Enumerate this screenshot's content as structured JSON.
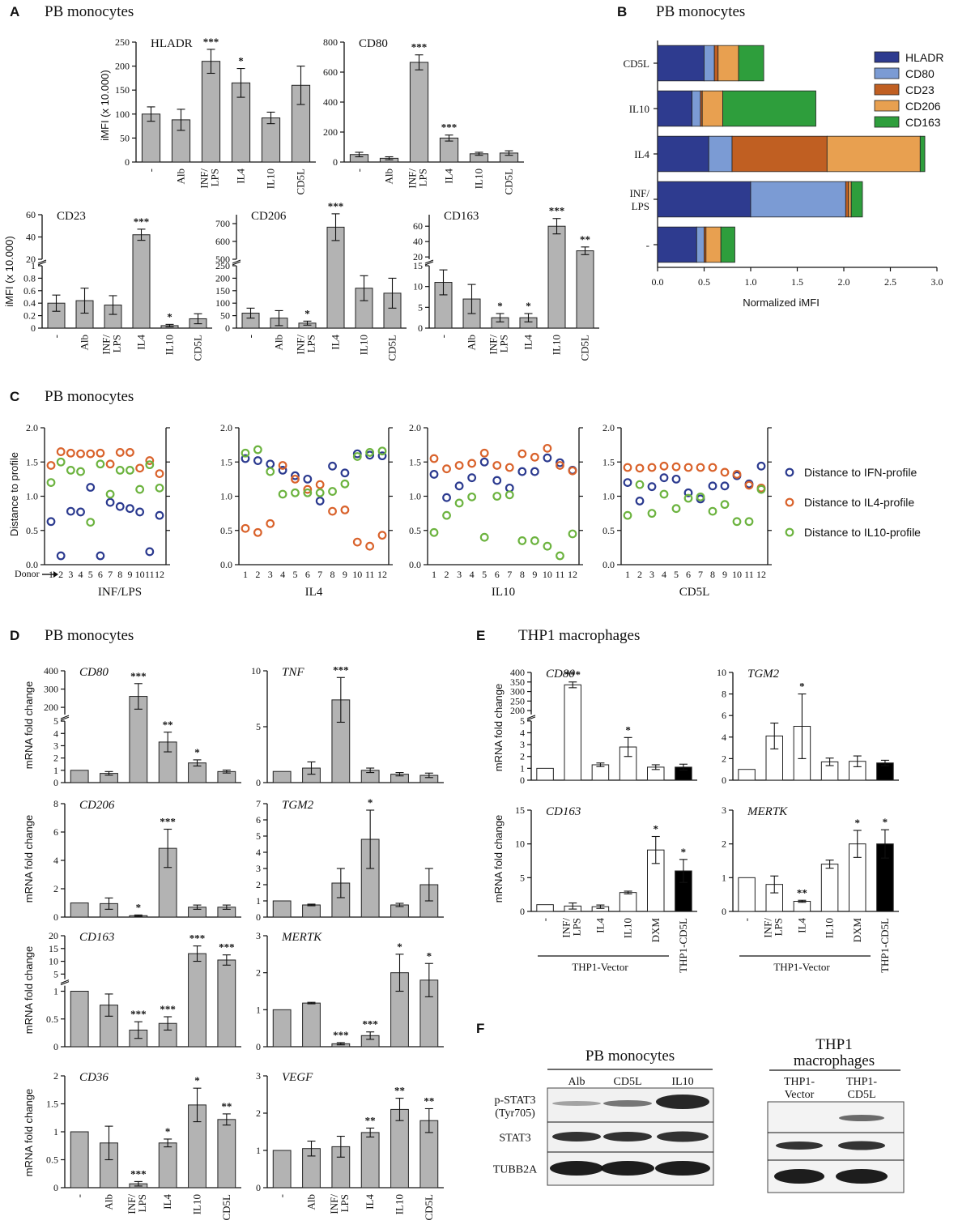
{
  "chart_data": [
    {
      "id": "A",
      "panel_label": "A",
      "title": "PB monocytes",
      "type": "bar",
      "ylabel": "iMFI (x 10.000)",
      "charts": [
        {
          "marker": "HLADR",
          "categories": [
            "-",
            "Alb",
            "INF/ LPS",
            "IL4",
            "IL10",
            "CD5L"
          ],
          "values": [
            100,
            88,
            210,
            165,
            92,
            160
          ],
          "errors": [
            15,
            22,
            25,
            30,
            12,
            40
          ],
          "stars": [
            "",
            "",
            "***",
            "*",
            "",
            ""
          ],
          "ylim": [
            0,
            250
          ],
          "yticks": [
            0,
            50,
            100,
            150,
            200,
            250
          ],
          "xlabels": true
        },
        {
          "marker": "CD80",
          "categories": [
            "-",
            "Alb",
            "INF/ LPS",
            "IL4",
            "IL10",
            "CD5L"
          ],
          "values": [
            50,
            25,
            665,
            160,
            55,
            60
          ],
          "errors": [
            15,
            10,
            50,
            20,
            10,
            15
          ],
          "stars": [
            "",
            "",
            "***",
            "***",
            "",
            ""
          ],
          "ylim": [
            0,
            800
          ],
          "yticks": [
            0,
            200,
            400,
            600,
            800
          ],
          "xlabels": true
        },
        {
          "marker": "CD23",
          "categories": [
            "-",
            "Alb",
            "INF/ LPS",
            "IL4",
            "IL10",
            "CD5L"
          ],
          "values": [
            0.4,
            0.44,
            0.37,
            42,
            0.04,
            0.15
          ],
          "errors": [
            0.13,
            0.2,
            0.15,
            5,
            0.02,
            0.08
          ],
          "stars": [
            "",
            "",
            "",
            "***",
            "*",
            ""
          ],
          "break": {
            "low": [
              0,
              1
            ],
            "high": [
              20,
              60
            ],
            "low_ticks": [
              0,
              0.2,
              0.4,
              0.6,
              0.8,
              1
            ],
            "high_ticks": [
              20,
              40,
              60
            ]
          },
          "xlabels": true
        },
        {
          "marker": "CD206",
          "categories": [
            "-",
            "Alb",
            "INF/ LPS",
            "IL4",
            "IL10",
            "CD5L"
          ],
          "values": [
            60,
            40,
            20,
            680,
            160,
            140
          ],
          "errors": [
            20,
            30,
            8,
            75,
            50,
            60
          ],
          "stars": [
            "",
            "",
            "*",
            "***",
            "",
            ""
          ],
          "break": {
            "low": [
              0,
              250
            ],
            "high": [
              500,
              750
            ],
            "low_ticks": [
              0,
              50,
              100,
              150,
              200,
              250
            ],
            "high_ticks": [
              500,
              600,
              700
            ]
          },
          "xlabels": true
        },
        {
          "marker": "CD163",
          "categories": [
            "-",
            "Alb",
            "INF/ LPS",
            "IL4",
            "IL10",
            "CD5L"
          ],
          "values": [
            11,
            7,
            2.5,
            2.5,
            60,
            28
          ],
          "errors": [
            3,
            3.5,
            1,
            1,
            10,
            5
          ],
          "stars": [
            "",
            "",
            "*",
            "*",
            "***",
            "**"
          ],
          "break": {
            "low": [
              0,
              15
            ],
            "high": [
              17,
              75
            ],
            "low_ticks": [
              0,
              5,
              10,
              15
            ],
            "high_ticks": [
              20,
              40,
              60
            ]
          },
          "xlabels": true
        }
      ]
    },
    {
      "id": "B",
      "panel_label": "B",
      "title": "PB monocytes",
      "type": "stacked-horizontal-bar",
      "xlabel": "Normalized iMFI",
      "xlim": [
        0,
        3
      ],
      "xticks": [
        0.0,
        0.5,
        1.0,
        1.5,
        2.0,
        2.5,
        3.0
      ],
      "xtick_labels": [
        "0.0",
        "0.5",
        "1.0",
        "1.5",
        "2.0",
        "2.5",
        "3.0"
      ],
      "categories": [
        "CD5L",
        "IL10",
        "IL4",
        "INF/ LPS",
        "-"
      ],
      "series": [
        {
          "name": "HLADR",
          "color": "#2e3b8f",
          "values": [
            0.5,
            0.37,
            0.55,
            1.0,
            0.42
          ]
        },
        {
          "name": "CD80",
          "color": "#7b9bd4",
          "values": [
            0.11,
            0.09,
            0.25,
            1.02,
            0.08
          ]
        },
        {
          "name": "CD23",
          "color": "#c05f22",
          "values": [
            0.04,
            0.02,
            1.02,
            0.03,
            0.02
          ]
        },
        {
          "name": "CD206",
          "color": "#e8a050",
          "values": [
            0.22,
            0.22,
            1.0,
            0.03,
            0.16
          ]
        },
        {
          "name": "CD163",
          "color": "#2e9e3c",
          "values": [
            0.27,
            1.0,
            0.05,
            0.12,
            0.15
          ]
        }
      ]
    },
    {
      "id": "C",
      "panel_label": "C",
      "title": "PB monocytes",
      "type": "scatter",
      "ylabel": "Distance to profile",
      "donor_label": "Donor",
      "ylim": [
        0,
        2
      ],
      "yticks": [
        0.0,
        0.5,
        1.0,
        1.5,
        2.0
      ],
      "ytick_labels": [
        "0.0",
        "0.5",
        "1.0",
        "1.5",
        "2.0"
      ],
      "x": [
        1,
        2,
        3,
        4,
        5,
        6,
        7,
        8,
        9,
        10,
        11,
        12
      ],
      "legend": [
        {
          "name": "Distance to IFN-profile",
          "color": "#2b3a8f"
        },
        {
          "name": "Distance to IL4-profile",
          "color": "#d9622b"
        },
        {
          "name": "Distance to IL10-profile",
          "color": "#6cb33f"
        }
      ],
      "charts": [
        {
          "xlabel": "INF/LPS",
          "ifn": [
            0.63,
            0.13,
            0.78,
            0.77,
            1.13,
            0.13,
            0.91,
            0.85,
            0.82,
            0.77,
            0.19,
            0.72
          ],
          "il4": [
            1.45,
            1.65,
            1.63,
            1.62,
            1.62,
            1.63,
            1.47,
            1.64,
            1.64,
            1.41,
            1.52,
            1.33
          ],
          "il10": [
            1.2,
            1.5,
            1.38,
            1.36,
            0.62,
            1.47,
            1.03,
            1.38,
            1.38,
            1.1,
            1.46,
            1.12
          ]
        },
        {
          "xlabel": "IL4",
          "ifn": [
            1.55,
            1.52,
            1.47,
            1.38,
            1.3,
            1.25,
            0.93,
            1.44,
            1.34,
            1.62,
            1.6,
            1.59
          ],
          "il4": [
            0.53,
            0.47,
            0.6,
            1.45,
            1.25,
            1.1,
            1.17,
            0.78,
            0.8,
            0.33,
            0.27,
            0.43
          ],
          "il10": [
            1.63,
            1.68,
            1.36,
            1.03,
            1.05,
            1.05,
            1.05,
            1.07,
            1.18,
            1.58,
            1.64,
            1.66
          ]
        },
        {
          "xlabel": "IL10",
          "ifn": [
            1.32,
            0.98,
            1.15,
            1.27,
            1.5,
            1.23,
            1.12,
            1.36,
            1.36,
            1.56,
            1.49,
            1.38
          ],
          "il4": [
            1.55,
            1.4,
            1.45,
            1.48,
            1.63,
            1.45,
            1.42,
            1.62,
            1.57,
            1.7,
            1.45,
            1.37
          ],
          "il10": [
            0.47,
            0.72,
            0.9,
            0.99,
            0.4,
            1.0,
            1.02,
            0.35,
            0.35,
            0.27,
            0.13,
            0.45
          ]
        },
        {
          "xlabel": "CD5L",
          "ifn": [
            1.2,
            0.93,
            1.14,
            1.27,
            1.25,
            1.05,
            0.96,
            1.15,
            1.15,
            1.3,
            1.18,
            1.44
          ],
          "il4": [
            1.42,
            1.41,
            1.42,
            1.44,
            1.43,
            1.42,
            1.42,
            1.42,
            1.35,
            1.32,
            1.16,
            1.12
          ],
          "il10": [
            0.72,
            1.17,
            0.75,
            1.03,
            0.82,
            0.97,
            0.99,
            0.78,
            0.88,
            0.63,
            0.63,
            1.1
          ]
        }
      ]
    },
    {
      "id": "D",
      "panel_label": "D",
      "title": "PB monocytes",
      "type": "bar",
      "ylabel": "mRNA fold change",
      "categories": [
        "-",
        "Alb",
        "INF/ LPS",
        "IL4",
        "IL10",
        "CD5L"
      ],
      "charts": [
        {
          "gene": "CD80",
          "values": [
            1,
            0.75,
            260,
            3.3,
            1.6,
            0.9
          ],
          "errors": [
            0,
            0.15,
            70,
            0.8,
            0.25,
            0.12
          ],
          "stars": [
            "",
            "",
            "***",
            "**",
            "*",
            ""
          ],
          "break": {
            "low": [
              0,
              5
            ],
            "high": [
              160,
              400
            ],
            "low_ticks": [
              0,
              1,
              2,
              3,
              4,
              5
            ],
            "high_ticks": [
              200,
              300,
              400
            ]
          }
        },
        {
          "gene": "TNF",
          "values": [
            1,
            1.3,
            7.4,
            1.1,
            0.75,
            0.65
          ],
          "errors": [
            0,
            0.55,
            2,
            0.2,
            0.15,
            0.2
          ],
          "stars": [
            "",
            "",
            "***",
            "",
            "",
            ""
          ],
          "ylim": [
            0,
            10
          ],
          "yticks": [
            0,
            5,
            10
          ]
        },
        {
          "gene": "CD206",
          "values": [
            1,
            0.95,
            0.1,
            4.85,
            0.7,
            0.7
          ],
          "errors": [
            0,
            0.4,
            0.05,
            1.35,
            0.15,
            0.15
          ],
          "stars": [
            "",
            "",
            "*",
            "***",
            "",
            ""
          ],
          "ylim": [
            0,
            8
          ],
          "yticks": [
            0,
            2,
            4,
            6,
            8
          ]
        },
        {
          "gene": "TGM2",
          "values": [
            1,
            0.75,
            2.1,
            4.8,
            0.75,
            2.0
          ],
          "errors": [
            0,
            0.05,
            0.9,
            1.8,
            0.1,
            1.0
          ],
          "stars": [
            "",
            "",
            "",
            "*",
            "",
            ""
          ],
          "ylim": [
            0,
            7
          ],
          "yticks": [
            0,
            1,
            2,
            3,
            4,
            5,
            6,
            7
          ]
        },
        {
          "gene": "CD163",
          "values": [
            1,
            0.75,
            0.3,
            0.42,
            13,
            10.5
          ],
          "errors": [
            0,
            0.2,
            0.15,
            0.12,
            3,
            2
          ],
          "stars": [
            "",
            "",
            "***",
            "***",
            "***",
            "***"
          ],
          "break": {
            "low": [
              0,
              1.1
            ],
            "high": [
              3,
              20
            ],
            "low_ticks": [
              0,
              0.5,
              1
            ],
            "high_ticks": [
              5,
              10,
              15,
              20
            ]
          }
        },
        {
          "gene": "MERTK",
          "values": [
            1,
            1.18,
            0.08,
            0.3,
            2.0,
            1.8
          ],
          "errors": [
            0,
            0.02,
            0.03,
            0.1,
            0.5,
            0.45
          ],
          "stars": [
            "",
            "",
            "***",
            "***",
            "*",
            "*"
          ],
          "ylim": [
            0,
            3
          ],
          "yticks": [
            0,
            1,
            2,
            3
          ]
        },
        {
          "gene": "CD36",
          "values": [
            1,
            0.8,
            0.07,
            0.8,
            1.48,
            1.22
          ],
          "errors": [
            0,
            0.3,
            0.04,
            0.07,
            0.3,
            0.1
          ],
          "stars": [
            "",
            "",
            "***",
            "*",
            "*",
            "**"
          ],
          "ylim": [
            0,
            2
          ],
          "yticks": [
            0,
            0.5,
            1,
            1.5,
            2
          ]
        },
        {
          "gene": "VEGF",
          "values": [
            1,
            1.05,
            1.1,
            1.48,
            2.1,
            1.8
          ],
          "errors": [
            0,
            0.2,
            0.28,
            0.12,
            0.3,
            0.32
          ],
          "stars": [
            "",
            "",
            "",
            "**",
            "**",
            "**"
          ],
          "ylim": [
            0,
            3
          ],
          "yticks": [
            0,
            1,
            2,
            3
          ]
        }
      ]
    },
    {
      "id": "E",
      "panel_label": "E",
      "title": "THP1 macrophages",
      "type": "bar",
      "ylabel": "mRNA fold change",
      "categories": [
        "-",
        "INF/ LPS",
        "IL4",
        "IL10",
        "DXM",
        "THP1-CD5L"
      ],
      "group_label": "THP1-Vector",
      "bar_colors": [
        "#ffffff",
        "#ffffff",
        "#ffffff",
        "#ffffff",
        "#ffffff",
        "#000000"
      ],
      "charts": [
        {
          "gene": "CD80",
          "values": [
            1,
            335,
            1.3,
            2.8,
            1.1,
            1.1
          ],
          "errors": [
            0,
            15,
            0.15,
            0.8,
            0.2,
            0.25
          ],
          "stars": [
            "",
            "***",
            "",
            "*",
            "",
            ""
          ],
          "break": {
            "low": [
              0,
              5
            ],
            "high": [
              180,
              400
            ],
            "low_ticks": [
              0,
              1,
              2,
              3,
              4,
              5
            ],
            "high_ticks": [
              200,
              250,
              300,
              350,
              400
            ]
          }
        },
        {
          "gene": "TGM2",
          "values": [
            1,
            4.1,
            5.0,
            1.7,
            1.75,
            1.6
          ],
          "errors": [
            0,
            1.2,
            3.0,
            0.35,
            0.5,
            0.25
          ],
          "stars": [
            "",
            "",
            "*",
            "",
            "",
            ""
          ],
          "ylim": [
            0,
            10
          ],
          "yticks": [
            0,
            2,
            4,
            6,
            8,
            10
          ]
        },
        {
          "gene": "CD163",
          "values": [
            1,
            0.8,
            0.7,
            2.8,
            9.1,
            6.0
          ],
          "errors": [
            0,
            0.45,
            0.25,
            0.2,
            2.0,
            1.7
          ],
          "stars": [
            "",
            "",
            "",
            "",
            "*",
            "*"
          ],
          "ylim": [
            0,
            15
          ],
          "yticks": [
            0,
            5,
            10,
            15
          ]
        },
        {
          "gene": "MERTK",
          "values": [
            1,
            0.8,
            0.3,
            1.4,
            2.0,
            2.0
          ],
          "errors": [
            0,
            0.25,
            0.03,
            0.12,
            0.4,
            0.42
          ],
          "stars": [
            "",
            "",
            "**",
            "",
            "*",
            "*"
          ],
          "ylim": [
            0,
            3
          ],
          "yticks": [
            0,
            1,
            2,
            3
          ]
        }
      ]
    },
    {
      "id": "F",
      "panel_label": "F",
      "type": "western-blot",
      "left_title": "PB monocytes",
      "left_lanes": [
        "Alb",
        "CD5L",
        "IL10"
      ],
      "right_title": "THP1 macrophages",
      "right_lanes": [
        "THP1- Vector",
        "THP1- CD5L"
      ],
      "rows": [
        "p-STAT3 (Tyr705)",
        "STAT3",
        "TUBB2A"
      ]
    }
  ]
}
